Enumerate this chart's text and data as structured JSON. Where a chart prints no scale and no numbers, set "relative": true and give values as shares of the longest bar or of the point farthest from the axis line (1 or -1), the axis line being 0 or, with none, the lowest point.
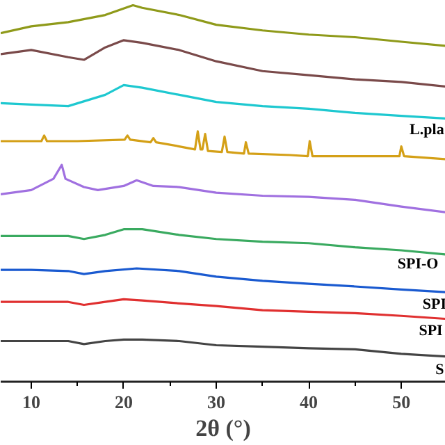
{
  "chart_data": {
    "type": "line",
    "relative": true,
    "xlabel": "2θ (°)",
    "xlim": [
      6.7,
      54.8
    ],
    "xticks": [
      10,
      {
        "value": 15,
        "label": null
      },
      20,
      {
        "value": 25,
        "label": null
      },
      30,
      {
        "value": 35,
        "label": null
      },
      40,
      {
        "value": 45,
        "label": null
      },
      50
    ],
    "grid": false,
    "marker": "none",
    "line_style": "solid",
    "tick_labels": "x",
    "series": [
      {
        "color": "#8f9a1a",
        "x": [
          6.7,
          10,
          14,
          18,
          21,
          22,
          26,
          30,
          35,
          40,
          45,
          50,
          54.8
        ],
        "values": [
          0.926,
          0.944,
          0.955,
          0.974,
          1.0,
          0.993,
          0.974,
          0.948,
          0.933,
          0.922,
          0.915,
          0.903,
          0.892
        ]
      },
      {
        "color": "#7a4a4a",
        "x": [
          6.7,
          10,
          14,
          15.7,
          18,
          20,
          22,
          26,
          30,
          35,
          40,
          45,
          50,
          54.8
        ],
        "values": [
          0.87,
          0.881,
          0.862,
          0.855,
          0.888,
          0.907,
          0.9,
          0.881,
          0.851,
          0.825,
          0.814,
          0.803,
          0.796,
          0.784
        ]
      },
      {
        "color": "#1ec8d0",
        "x": [
          6.7,
          10,
          14,
          18,
          20,
          22,
          26,
          30,
          35,
          40,
          45,
          50,
          54.8
        ],
        "values": [
          0.74,
          0.736,
          0.732,
          0.762,
          0.788,
          0.781,
          0.762,
          0.743,
          0.732,
          0.725,
          0.714,
          0.706,
          0.699
        ]
      },
      {
        "color": "#d4a017",
        "x": [
          6.7,
          10,
          11.1,
          11.4,
          11.7,
          15,
          20.1,
          20.4,
          20.7,
          22.9,
          23.2,
          23.5,
          26,
          27.7,
          28.0,
          28.3,
          28.5,
          28.8,
          29.1,
          30.6,
          30.9,
          31.2,
          33.0,
          33.2,
          33.5,
          38,
          39.9,
          40.1,
          40.4,
          45,
          49.8,
          50,
          50.3,
          54.8
        ],
        "values": [
          0.639,
          0.639,
          0.639,
          0.654,
          0.639,
          0.639,
          0.643,
          0.654,
          0.643,
          0.636,
          0.647,
          0.636,
          0.625,
          0.617,
          0.665,
          0.617,
          0.617,
          0.658,
          0.613,
          0.61,
          0.651,
          0.61,
          0.606,
          0.636,
          0.606,
          0.602,
          0.599,
          0.639,
          0.599,
          0.599,
          0.599,
          0.625,
          0.599,
          0.591
        ]
      },
      {
        "color": "#a070e0",
        "x": [
          6.7,
          10,
          12.4,
          13.3,
          13.7,
          15.7,
          17.2,
          20,
          21.4,
          23.2,
          26,
          30,
          35,
          40,
          45,
          50,
          54.8
        ],
        "values": [
          0.498,
          0.509,
          0.539,
          0.576,
          0.539,
          0.517,
          0.509,
          0.52,
          0.535,
          0.52,
          0.517,
          0.502,
          0.494,
          0.491,
          0.483,
          0.465,
          0.45
        ]
      },
      {
        "color": "#3aaa60",
        "x": [
          6.7,
          10,
          14,
          15.7,
          18,
          20,
          22,
          26,
          30,
          35,
          40,
          45,
          50,
          54.8
        ],
        "values": [
          0.387,
          0.387,
          0.387,
          0.379,
          0.39,
          0.405,
          0.405,
          0.39,
          0.379,
          0.372,
          0.368,
          0.357,
          0.349,
          0.338
        ]
      },
      {
        "color": "#1a5ad0",
        "x": [
          6.7,
          10,
          14,
          15.7,
          18,
          21.4,
          26,
          30,
          35,
          40,
          45,
          50,
          54.8
        ],
        "values": [
          0.297,
          0.297,
          0.294,
          0.286,
          0.294,
          0.301,
          0.294,
          0.279,
          0.268,
          0.26,
          0.253,
          0.245,
          0.238
        ]
      },
      {
        "color": "#e03030",
        "x": [
          6.7,
          10,
          14,
          15.7,
          18,
          20,
          22,
          26,
          30,
          35,
          40,
          45,
          50,
          54.8
        ],
        "values": [
          0.212,
          0.212,
          0.212,
          0.204,
          0.212,
          0.219,
          0.216,
          0.208,
          0.201,
          0.19,
          0.186,
          0.182,
          0.175,
          0.167
        ]
      },
      {
        "color": "#444444",
        "x": [
          6.7,
          10,
          14,
          15.7,
          18,
          20,
          22,
          26,
          30,
          35,
          40,
          45,
          50,
          54.8
        ],
        "values": [
          0.108,
          0.108,
          0.108,
          0.1,
          0.108,
          0.112,
          0.112,
          0.108,
          0.097,
          0.093,
          0.089,
          0.086,
          0.074,
          0.067
        ]
      }
    ],
    "annotations": [
      {
        "text": "L.pla",
        "x": 50.9,
        "y": 0.705
      },
      {
        "text": "SPI-O",
        "x": 49.6,
        "y": 0.349
      },
      {
        "text": "SPI",
        "x": 52.3,
        "y": 0.242
      },
      {
        "text": "SPI",
        "x": 51.9,
        "y": 0.172
      },
      {
        "text": "S",
        "x": 53.7,
        "y": 0.069
      }
    ]
  }
}
